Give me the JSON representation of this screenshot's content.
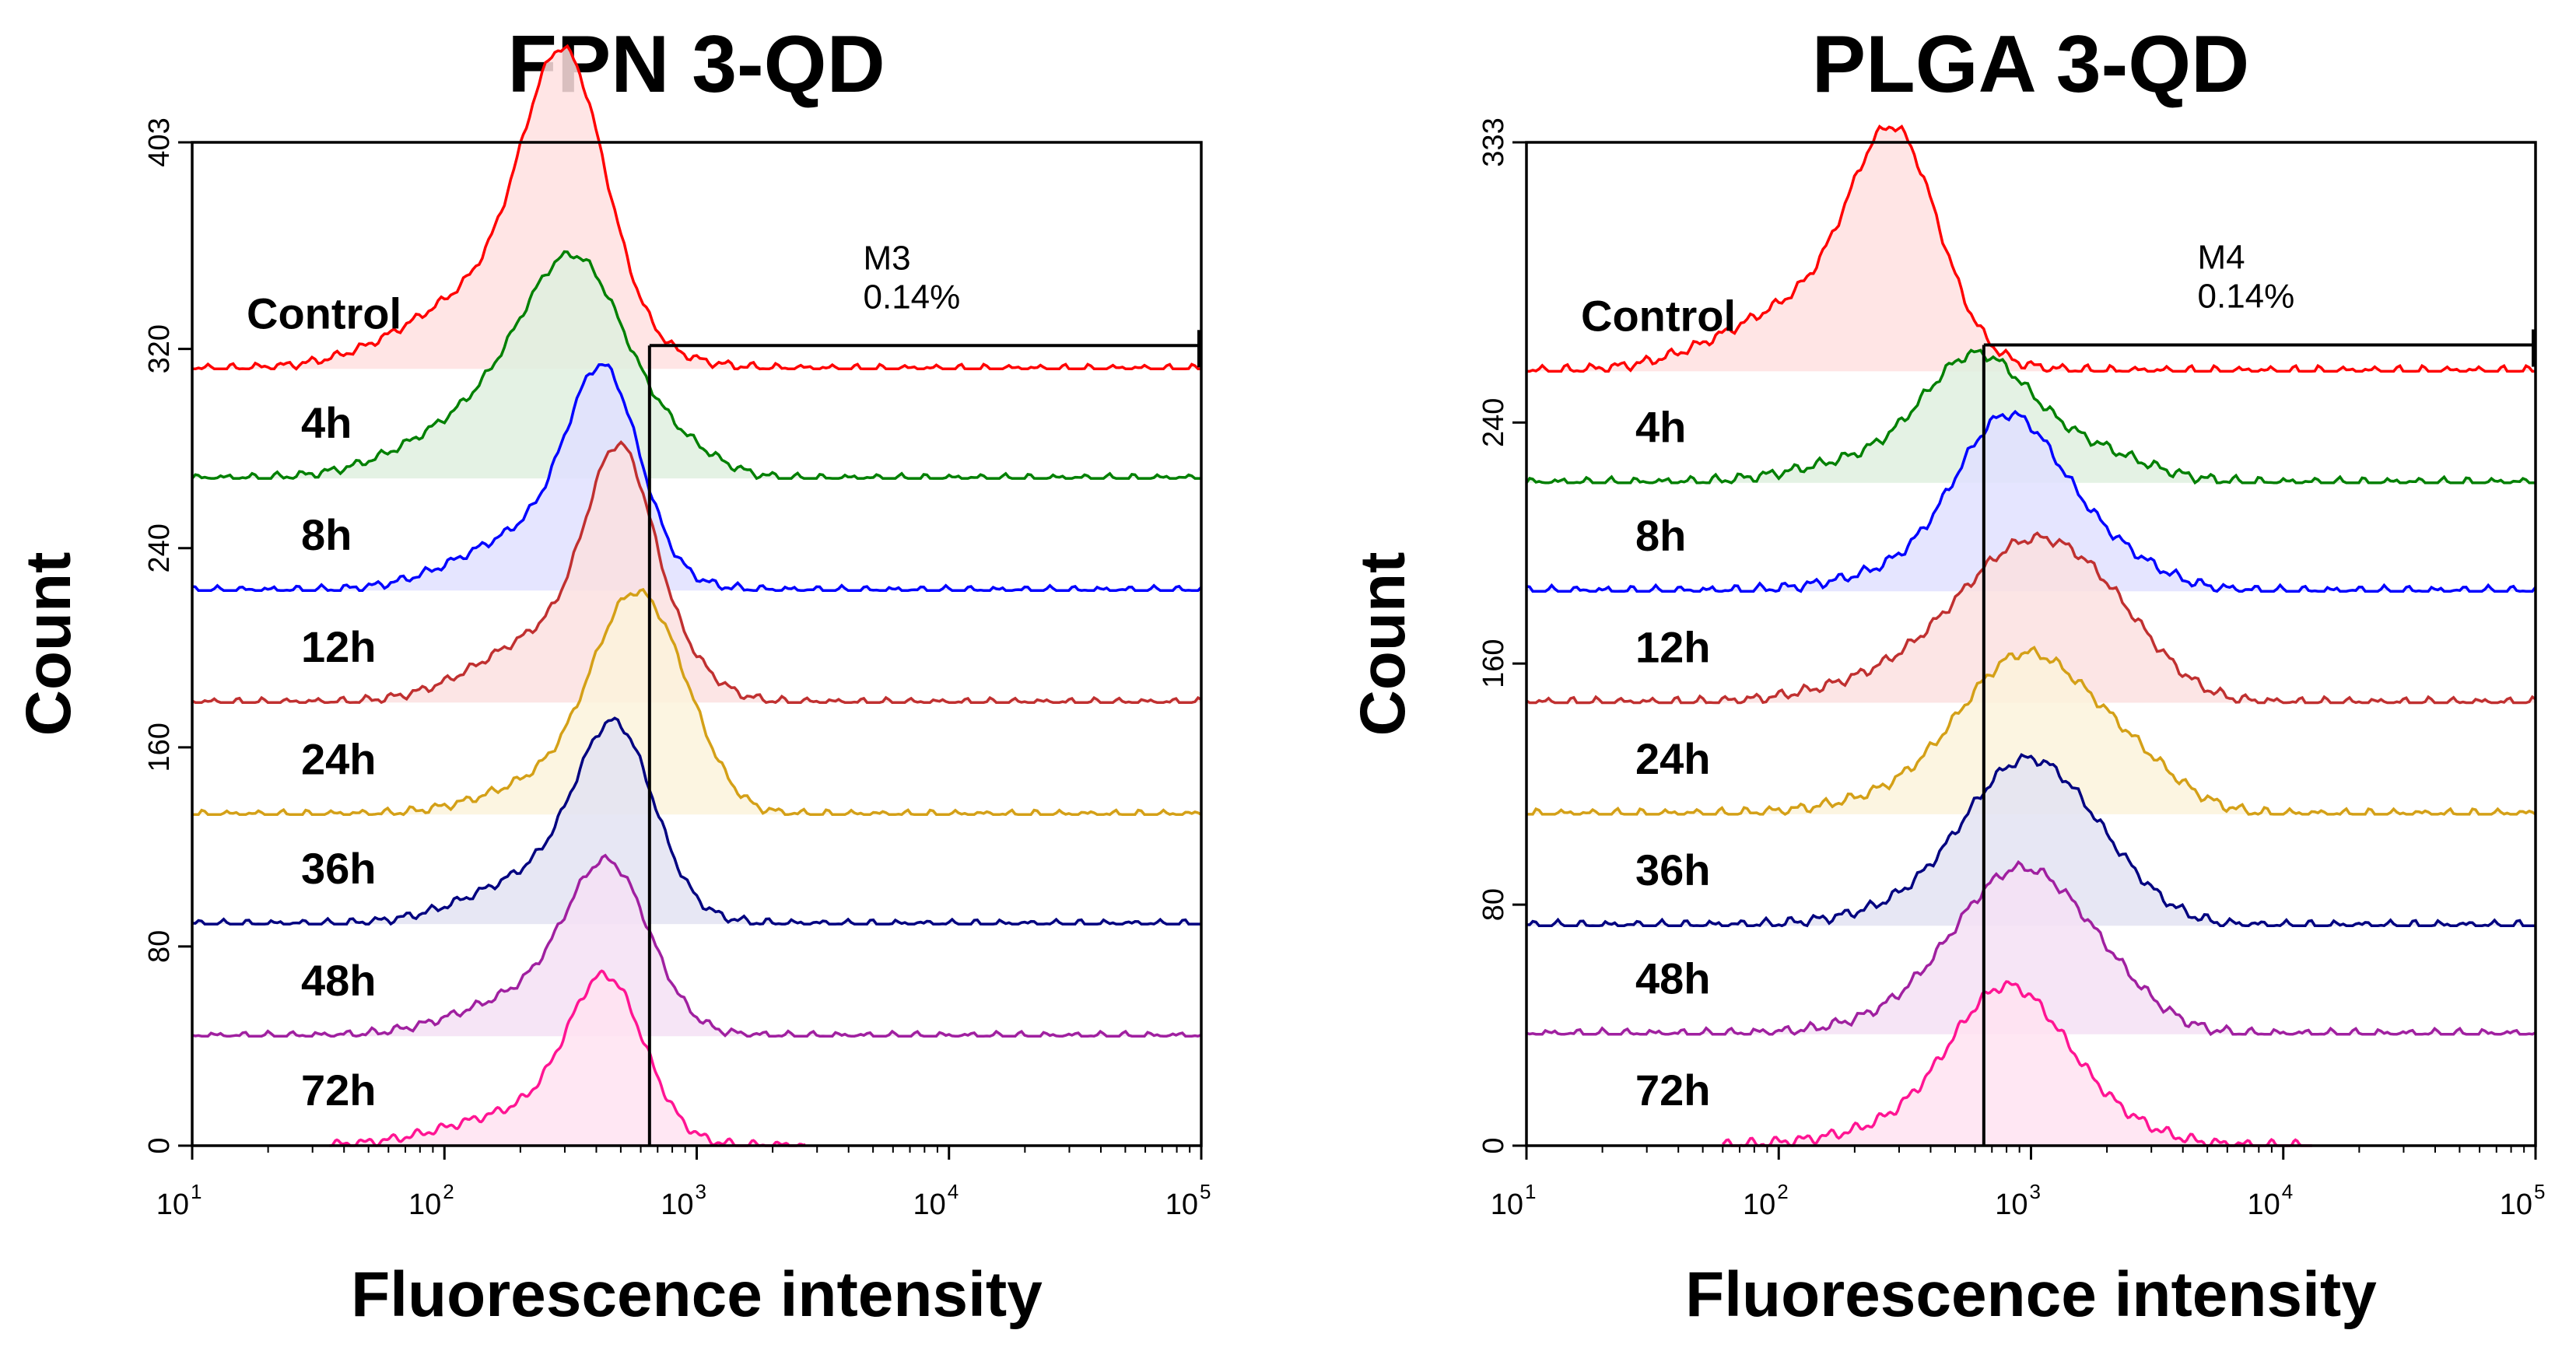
{
  "chart_data": [
    {
      "type": "area",
      "title": "FPN 3-QD",
      "xlabel": "Fluorescence intensity",
      "ylabel": "Count",
      "xscale": "log",
      "xlim": [
        10,
        100000
      ],
      "x_ticks": [
        {
          "base": "10",
          "exp": "1"
        },
        {
          "base": "10",
          "exp": "2"
        },
        {
          "base": "10",
          "exp": "3"
        },
        {
          "base": "10",
          "exp": "4"
        },
        {
          "base": "10",
          "exp": "5"
        }
      ],
      "ylim": [
        0,
        403
      ],
      "y_ticks": [
        "0",
        "80",
        "160",
        "240",
        "320",
        "403"
      ],
      "marker": {
        "name": "M3",
        "percent": "0.14%",
        "x_start": 650,
        "x_end": 100000,
        "count_level": 312
      },
      "gate_x": 650,
      "series": [
        {
          "name": "Control",
          "color": "#ff0000",
          "fill": "#ffe0e0",
          "baseline": 312,
          "start": 10,
          "end": 100000,
          "peaks": [
            [
              300,
              0.16,
              100
            ],
            [
              180,
              0.35,
              35
            ]
          ]
        },
        {
          "name": "4h",
          "color": "#008000",
          "fill": "#dff0df",
          "baseline": 268,
          "start": 10,
          "end": 100000,
          "peaks": [
            [
              340,
              0.2,
              68
            ],
            [
              180,
              0.33,
              30
            ],
            [
              900,
              0.15,
              8
            ]
          ]
        },
        {
          "name": "8h",
          "color": "#0000ff",
          "fill": "#e0e0ff",
          "baseline": 223,
          "start": 10,
          "end": 100000,
          "peaks": [
            [
              430,
              0.14,
              72
            ],
            [
              250,
              0.3,
              25
            ]
          ]
        },
        {
          "name": "12h",
          "color": "#c03030",
          "fill": "#fbe1e1",
          "baseline": 178,
          "start": 10,
          "end": 100000,
          "peaks": [
            [
              500,
              0.13,
              80
            ],
            [
              300,
              0.3,
              30
            ],
            [
              900,
              0.12,
              8
            ]
          ]
        },
        {
          "name": "24h",
          "color": "#d4a017",
          "fill": "#fbf3dc",
          "baseline": 133,
          "start": 10,
          "end": 100000,
          "peaks": [
            [
              560,
              0.16,
              70
            ],
            [
              350,
              0.3,
              18
            ],
            [
              900,
              0.13,
              18
            ]
          ]
        },
        {
          "name": "36h",
          "color": "#000080",
          "fill": "#e3e3f2",
          "baseline": 89,
          "start": 10,
          "end": 100000,
          "peaks": [
            [
              480,
              0.15,
              65
            ],
            [
              280,
              0.3,
              22
            ]
          ]
        },
        {
          "name": "48h",
          "color": "#a020a0",
          "fill": "#f5e0f5",
          "baseline": 44,
          "start": 10,
          "end": 100000,
          "peaks": [
            [
              450,
              0.16,
              58
            ],
            [
              250,
              0.3,
              18
            ]
          ]
        },
        {
          "name": "72h",
          "color": "#ff1493",
          "fill": "#ffe3f1",
          "baseline": 0,
          "start": 35,
          "end": 2700,
          "peaks": [
            [
              440,
              0.15,
              60
            ],
            [
              220,
              0.3,
              14
            ]
          ]
        }
      ]
    },
    {
      "type": "area",
      "title": "PLGA 3-QD",
      "xlabel": "Fluorescence intensity",
      "ylabel": "Count",
      "xscale": "log",
      "xlim": [
        10,
        100000
      ],
      "x_ticks": [
        {
          "base": "10",
          "exp": "1"
        },
        {
          "base": "10",
          "exp": "2"
        },
        {
          "base": "10",
          "exp": "3"
        },
        {
          "base": "10",
          "exp": "4"
        },
        {
          "base": "10",
          "exp": "5"
        }
      ],
      "ylim": [
        0,
        333
      ],
      "y_ticks": [
        "0",
        "80",
        "160",
        "240",
        "333"
      ],
      "marker": {
        "name": "M4",
        "percent": "0.14%",
        "x_start": 650,
        "x_end": 100000,
        "count_level": 258
      },
      "gate_x": 650,
      "series": [
        {
          "name": "Control",
          "color": "#ff0000",
          "fill": "#ffe0e0",
          "baseline": 257,
          "start": 10,
          "end": 100000,
          "peaks": [
            [
              290,
              0.17,
              64
            ],
            [
              150,
              0.35,
              24
            ]
          ]
        },
        {
          "name": "4h",
          "color": "#008000",
          "fill": "#dff0df",
          "baseline": 220,
          "start": 10,
          "end": 100000,
          "peaks": [
            [
              600,
              0.2,
              36
            ],
            [
              1500,
              0.25,
              12
            ],
            [
              250,
              0.3,
              8
            ]
          ]
        },
        {
          "name": "8h",
          "color": "#0000ff",
          "fill": "#e0e0ff",
          "baseline": 184,
          "start": 10,
          "end": 100000,
          "peaks": [
            [
              800,
              0.2,
              50
            ],
            [
              1800,
              0.22,
              14
            ],
            [
              400,
              0.3,
              8
            ]
          ]
        },
        {
          "name": "12h",
          "color": "#c03030",
          "fill": "#fbe1e1",
          "baseline": 147,
          "start": 10,
          "end": 100000,
          "peaks": [
            [
              1000,
              0.28,
              50
            ],
            [
              2200,
              0.2,
              12
            ],
            [
              300,
              0.3,
              8
            ]
          ]
        },
        {
          "name": "24h",
          "color": "#d4a017",
          "fill": "#fbf3dc",
          "baseline": 110,
          "start": 10,
          "end": 100000,
          "peaks": [
            [
              950,
              0.25,
              50
            ],
            [
              2500,
              0.2,
              14
            ],
            [
              350,
              0.3,
              6
            ]
          ]
        },
        {
          "name": "36h",
          "color": "#000080",
          "fill": "#e3e3f2",
          "baseline": 73,
          "start": 10,
          "end": 100000,
          "peaks": [
            [
              950,
              0.24,
              50
            ],
            [
              2000,
              0.2,
              10
            ],
            [
              400,
              0.3,
              6
            ]
          ]
        },
        {
          "name": "48h",
          "color": "#a020a0",
          "fill": "#f5e0f5",
          "baseline": 37,
          "start": 10,
          "end": 100000,
          "peaks": [
            [
              900,
              0.25,
              50
            ],
            [
              2000,
              0.2,
              10
            ],
            [
              400,
              0.3,
              6
            ]
          ]
        },
        {
          "name": "72h",
          "color": "#ff1493",
          "fill": "#ffe3f1",
          "baseline": 0,
          "start": 60,
          "end": 13000,
          "peaks": [
            [
              800,
              0.22,
              48
            ],
            [
              1800,
              0.22,
              8
            ],
            [
              350,
              0.3,
              6
            ]
          ]
        }
      ]
    }
  ]
}
